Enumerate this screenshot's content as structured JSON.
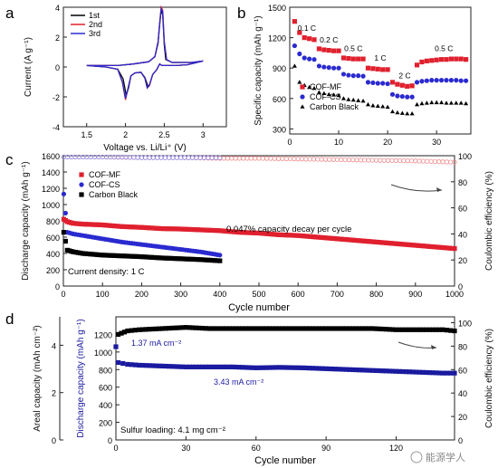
{
  "panel_labels": [
    "a",
    "b",
    "c",
    "d"
  ],
  "chart_data": [
    {
      "panel": "a",
      "type": "line",
      "xlabel": "Voltage vs. Li/Li⁺ (V)",
      "ylabel": "Current (A g⁻¹)",
      "xlim": [
        1.2,
        3.3
      ],
      "ylim": [
        -4,
        4
      ],
      "xticks": [
        1.5,
        2.0,
        2.5,
        3.0
      ],
      "yticks": [
        -4,
        -2,
        0,
        2,
        4
      ],
      "legend_position": "top-left",
      "colors": {
        "1st": "#000000",
        "2nd": "#e0202e",
        "3rd": "#2a2ad0"
      },
      "series": [
        {
          "name": "1st",
          "x": [
            1.5,
            1.75,
            1.9,
            1.97,
            2.01,
            2.04,
            2.07,
            2.12,
            2.2,
            2.25,
            2.29,
            2.31,
            2.35,
            2.4,
            2.44,
            2.47,
            2.5,
            2.55,
            2.65,
            2.8,
            3.0,
            2.85,
            2.6,
            2.52,
            2.5,
            2.48,
            2.46,
            2.44,
            2.42,
            2.38,
            2.3,
            2.1,
            1.9,
            1.7,
            1.5
          ],
          "y": [
            0.1,
            0,
            -0.15,
            -0.8,
            -1.9,
            -1.4,
            -0.6,
            -0.4,
            -0.35,
            -0.7,
            -1.3,
            -1.2,
            -0.5,
            -0.2,
            0.2,
            0.1,
            0.1,
            0.1,
            0.1,
            0.15,
            0.4,
            0.3,
            0.3,
            0.5,
            1.5,
            3.5,
            3.8,
            2.8,
            1.6,
            0.7,
            0.35,
            0.2,
            0.1,
            0.1,
            0.1
          ]
        },
        {
          "name": "2nd",
          "x": [
            1.5,
            1.75,
            1.9,
            1.96,
            2.0,
            2.03,
            2.07,
            2.12,
            2.2,
            2.25,
            2.28,
            2.31,
            2.35,
            2.4,
            2.44,
            2.47,
            2.5,
            2.55,
            2.65,
            2.8,
            3.0,
            2.85,
            2.6,
            2.53,
            2.5,
            2.48,
            2.46,
            2.44,
            2.42,
            2.38,
            2.3,
            2.1,
            1.9,
            1.7,
            1.5
          ],
          "y": [
            0.1,
            0,
            -0.15,
            -1.0,
            -2.2,
            -1.5,
            -0.6,
            -0.4,
            -0.35,
            -0.75,
            -1.4,
            -1.25,
            -0.5,
            -0.2,
            0.2,
            0.1,
            0.1,
            0.1,
            0.1,
            0.15,
            0.4,
            0.3,
            0.3,
            0.5,
            1.7,
            3.8,
            4.0,
            2.9,
            1.7,
            0.7,
            0.35,
            0.2,
            0.1,
            0.1,
            0.1
          ]
        },
        {
          "name": "3rd",
          "x": [
            1.5,
            1.75,
            1.9,
            1.96,
            2.0,
            2.03,
            2.07,
            2.12,
            2.2,
            2.25,
            2.28,
            2.31,
            2.35,
            2.4,
            2.44,
            2.47,
            2.5,
            2.55,
            2.65,
            2.8,
            3.0,
            2.85,
            2.6,
            2.53,
            2.5,
            2.48,
            2.46,
            2.44,
            2.42,
            2.38,
            2.3,
            2.1,
            1.9,
            1.7,
            1.5
          ],
          "y": [
            0.1,
            0,
            -0.15,
            -1.0,
            -2.1,
            -1.5,
            -0.6,
            -0.4,
            -0.35,
            -0.75,
            -1.4,
            -1.2,
            -0.5,
            -0.2,
            0.2,
            0.1,
            0.1,
            0.1,
            0.1,
            0.15,
            0.4,
            0.3,
            0.3,
            0.5,
            1.7,
            3.7,
            3.9,
            2.9,
            1.7,
            0.7,
            0.35,
            0.2,
            0.1,
            0.1,
            0.1
          ]
        }
      ]
    },
    {
      "panel": "b",
      "type": "scatter",
      "xlabel": "",
      "ylabel": "Specific capacity (mAh g⁻¹)",
      "xlim": [
        0,
        37
      ],
      "ylim": [
        250,
        1500
      ],
      "xticks": [
        0,
        10,
        20,
        30
      ],
      "yticks": [
        300,
        600,
        900,
        1200,
        1500
      ],
      "rate_labels": [
        {
          "text": "0.1 C",
          "x": 3.5,
          "y": 1270
        },
        {
          "text": "0.2 C",
          "x": 8,
          "y": 1150
        },
        {
          "text": "0.5 C",
          "x": 13,
          "y": 1065
        },
        {
          "text": "1 C",
          "x": 18.5,
          "y": 975
        },
        {
          "text": "2 C",
          "x": 23.5,
          "y": 800
        },
        {
          "text": "0.5 C",
          "x": 31.5,
          "y": 1065
        }
      ],
      "legend_position": "bottom-left",
      "colors": {
        "COF-MF": "#e0202e",
        "COF-CS": "#2a2ad0",
        "Carbon Black": "#000000"
      },
      "series": [
        {
          "name": "COF-MF",
          "x": [
            1,
            2,
            3,
            4,
            5,
            6,
            7,
            8,
            9,
            10,
            11,
            12,
            13,
            14,
            15,
            16,
            17,
            18,
            19,
            20,
            21,
            22,
            23,
            24,
            25,
            26,
            27,
            28,
            29,
            30,
            31,
            32,
            33,
            34,
            35,
            36
          ],
          "y": [
            1360,
            1250,
            1200,
            1190,
            1180,
            1090,
            1080,
            1075,
            1070,
            1070,
            1000,
            995,
            990,
            990,
            990,
            900,
            895,
            890,
            885,
            885,
            760,
            740,
            730,
            720,
            725,
            930,
            960,
            970,
            975,
            980,
            985,
            985,
            990,
            990,
            990,
            985
          ]
        },
        {
          "name": "COF-CS",
          "x": [
            1,
            2,
            3,
            4,
            5,
            6,
            7,
            8,
            9,
            10,
            11,
            12,
            13,
            14,
            15,
            16,
            17,
            18,
            19,
            20,
            21,
            22,
            23,
            24,
            25,
            26,
            27,
            28,
            29,
            30,
            31,
            32,
            33,
            34,
            35,
            36
          ],
          "y": [
            1120,
            1040,
            1000,
            990,
            985,
            920,
            910,
            905,
            900,
            900,
            840,
            830,
            825,
            825,
            820,
            760,
            755,
            750,
            750,
            745,
            640,
            625,
            620,
            615,
            615,
            760,
            770,
            775,
            780,
            780,
            780,
            780,
            780,
            780,
            775,
            775
          ]
        },
        {
          "name": "Carbon Black",
          "x": [
            1,
            2,
            3,
            4,
            5,
            6,
            7,
            8,
            9,
            10,
            11,
            12,
            13,
            14,
            15,
            16,
            17,
            18,
            19,
            20,
            21,
            22,
            23,
            24,
            25,
            26,
            27,
            28,
            29,
            30,
            31,
            32,
            33,
            34,
            35,
            36
          ],
          "y": [
            920,
            760,
            730,
            710,
            700,
            660,
            650,
            640,
            635,
            630,
            600,
            590,
            585,
            580,
            575,
            540,
            530,
            525,
            520,
            515,
            470,
            460,
            455,
            450,
            450,
            540,
            550,
            555,
            560,
            560,
            560,
            555,
            555,
            555,
            555,
            550
          ]
        }
      ]
    },
    {
      "panel": "c",
      "type": "scatter",
      "xlabel": "Cycle number",
      "ylabel": "Discharge capacity (mAh g⁻¹)",
      "y2label": "Coulombic efficiency (%)",
      "xlim": [
        0,
        1000
      ],
      "ylim": [
        0,
        1600
      ],
      "y2lim": [
        0,
        100
      ],
      "xticks": [
        0,
        100,
        200,
        300,
        400,
        500,
        600,
        700,
        800,
        900,
        1000
      ],
      "yticks": [
        0,
        200,
        400,
        600,
        800,
        1000,
        1200,
        1400,
        1600
      ],
      "y2ticks": [
        0,
        20,
        40,
        60,
        80,
        100
      ],
      "annotations": [
        "0.047% capacity decay per cycle",
        "Current density: 1 C"
      ],
      "legend_position": "top-left",
      "colors": {
        "COF-MF": "#e0202e",
        "COF-CS": "#2a2ad0",
        "Carbon Black": "#000000",
        "CE-MF": "#f08a8a",
        "CE-CS": "#8c8cf0"
      },
      "series": [
        {
          "name": "COF-MF",
          "x": [
            1,
            10,
            25,
            50,
            75,
            100,
            150,
            200,
            250,
            300,
            350,
            400,
            450,
            500,
            550,
            600,
            650,
            700,
            750,
            800,
            850,
            900,
            950,
            1000
          ],
          "y": [
            820,
            790,
            770,
            760,
            755,
            750,
            730,
            720,
            705,
            700,
            690,
            680,
            660,
            650,
            630,
            620,
            600,
            580,
            560,
            540,
            520,
            500,
            480,
            460
          ]
        },
        {
          "name": "COF-CS",
          "x": [
            1,
            10,
            25,
            50,
            75,
            100,
            150,
            200,
            250,
            300,
            350,
            400
          ],
          "y": [
            1130,
            660,
            640,
            620,
            600,
            580,
            540,
            510,
            480,
            450,
            420,
            380
          ]
        },
        {
          "name": "Carbon Black",
          "x": [
            1,
            10,
            25,
            50,
            75,
            100,
            150,
            200,
            250,
            300,
            350,
            400
          ],
          "y": [
            660,
            440,
            420,
            400,
            390,
            380,
            370,
            360,
            345,
            335,
            325,
            310
          ]
        },
        {
          "name": "COF-MF",
          "axis": "right",
          "x": [
            1,
            50,
            100,
            200,
            300,
            400,
            500,
            600,
            700,
            800,
            900,
            1000
          ],
          "y": [
            99,
            99,
            99,
            98.5,
            98.5,
            98,
            98,
            97.5,
            97,
            96.5,
            96,
            95
          ]
        },
        {
          "name": "COF-CS",
          "axis": "right",
          "x": [
            1,
            50,
            100,
            150,
            200,
            250,
            300,
            350,
            400
          ],
          "y": [
            99,
            99,
            99,
            99,
            98.5,
            98.5,
            98.5,
            98.5,
            98.5
          ]
        }
      ]
    },
    {
      "panel": "d",
      "type": "scatter",
      "xlabel": "Cycle number",
      "ylabel": "Discharge capacity (mAh g⁻¹)",
      "ylabel_outer": "Areal capacity (mAh cm⁻²)",
      "y2label": "Coulombic efficiency (%)",
      "xlim": [
        0,
        145
      ],
      "ylim": [
        0,
        1400
      ],
      "y2lim": [
        0,
        105
      ],
      "xticks": [
        0,
        30,
        60,
        90,
        120
      ],
      "yticks": [
        0,
        200,
        400,
        600,
        800,
        1000,
        1200
      ],
      "y2ticks": [
        0,
        20,
        40,
        60,
        80,
        100
      ],
      "outer_ticks": [
        0,
        2,
        4
      ],
      "annotations": [
        "1.37 mA cm⁻²",
        "3.43 mA cm⁻²",
        "Sulfur loading: 4.1 mg cm⁻²"
      ],
      "colors": {
        "capacity": "#1a1aa0",
        "ce": "#000000"
      },
      "series": [
        {
          "name": "capacity",
          "x": [
            0,
            1,
            3,
            5,
            10,
            20,
            30,
            40,
            50,
            60,
            70,
            80,
            90,
            100,
            110,
            120,
            130,
            140,
            145
          ],
          "y": [
            1060,
            880,
            870,
            860,
            850,
            840,
            830,
            830,
            830,
            820,
            825,
            820,
            810,
            800,
            790,
            780,
            770,
            760,
            760
          ]
        },
        {
          "name": "ce",
          "axis": "right",
          "x": [
            1,
            5,
            10,
            20,
            30,
            40,
            50,
            60,
            70,
            80,
            90,
            100,
            110,
            120,
            130,
            140,
            145
          ],
          "y": [
            90,
            93,
            94,
            95,
            96,
            95,
            95,
            95,
            95,
            95,
            95,
            95,
            95,
            94,
            94,
            94,
            93
          ]
        }
      ]
    }
  ],
  "watermark": "能源学人"
}
